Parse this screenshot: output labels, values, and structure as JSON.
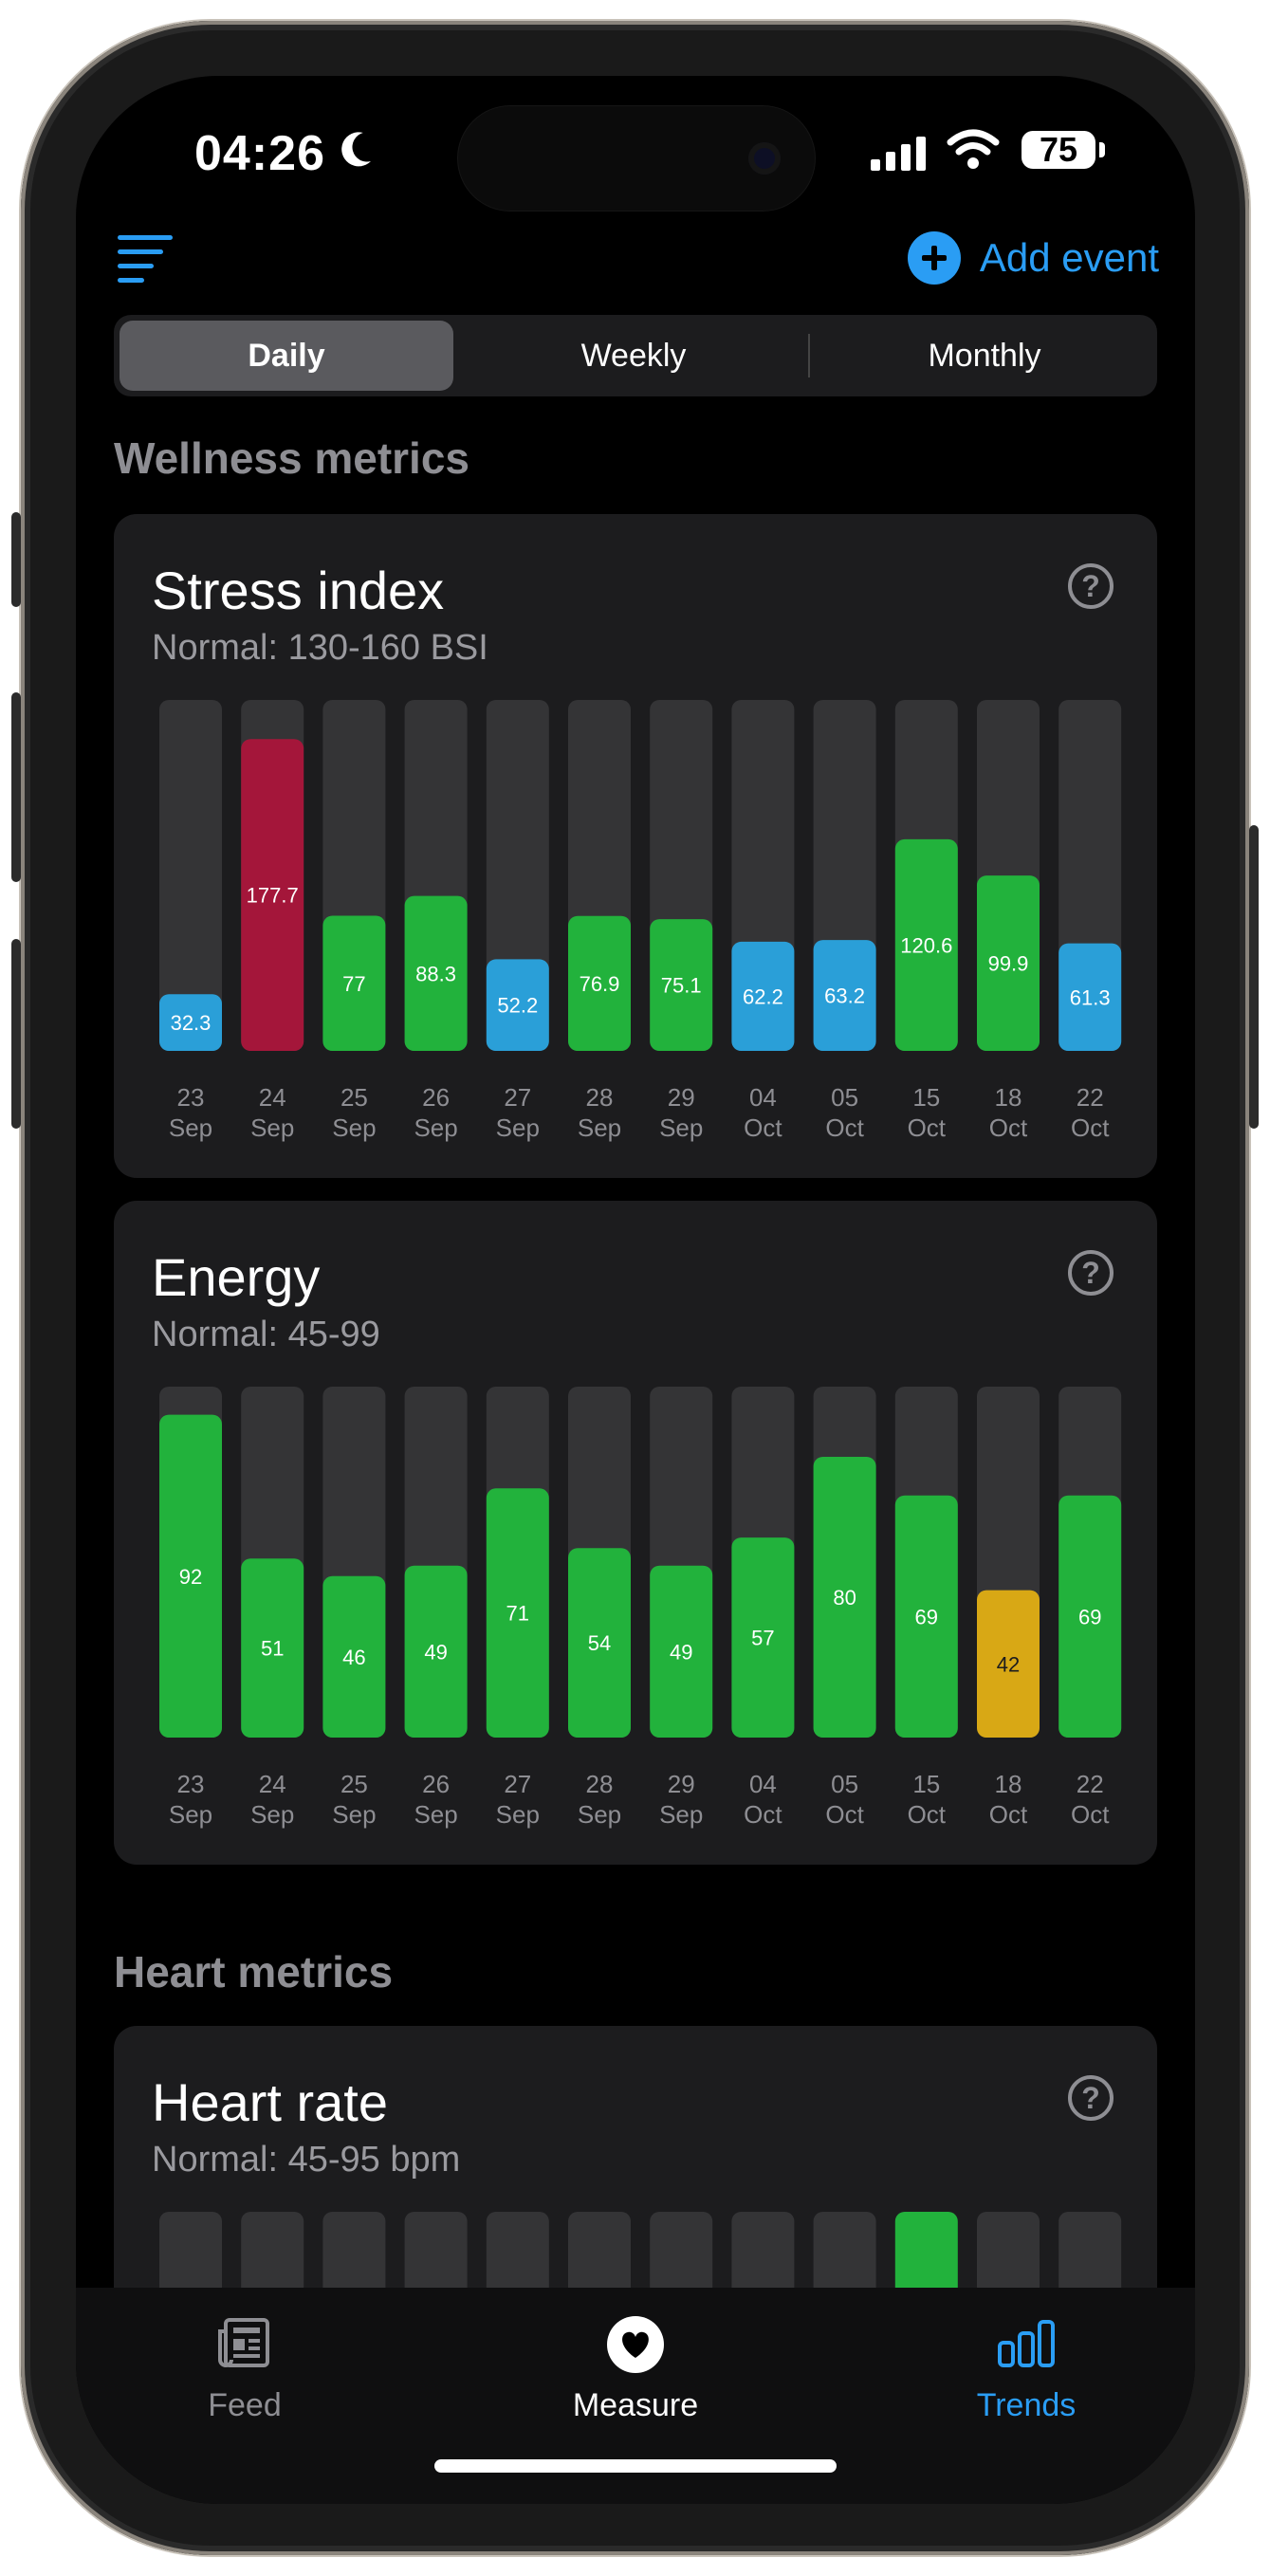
{
  "status_bar": {
    "time": "04:26",
    "battery": "75"
  },
  "header": {
    "add_event_label": "Add event"
  },
  "tabs": [
    {
      "label": "Daily",
      "selected": true
    },
    {
      "label": "Weekly",
      "selected": false
    },
    {
      "label": "Monthly",
      "selected": false
    }
  ],
  "sections": {
    "wellness": "Wellness metrics",
    "heart": "Heart metrics"
  },
  "cards": {
    "stress": {
      "title": "Stress index",
      "subtitle": "Normal: 130-160 BSI",
      "help": "?"
    },
    "energy": {
      "title": "Energy",
      "subtitle": "Normal: 45-99",
      "help": "?"
    },
    "heart_rate": {
      "title": "Heart rate",
      "subtitle": "Normal: 45-95 bpm",
      "help": "?"
    }
  },
  "chart_data": [
    {
      "type": "bar",
      "title": "Stress index",
      "ylim": [
        0,
        200
      ],
      "categories": [
        [
          "23",
          "Sep"
        ],
        [
          "24",
          "Sep"
        ],
        [
          "25",
          "Sep"
        ],
        [
          "26",
          "Sep"
        ],
        [
          "27",
          "Sep"
        ],
        [
          "28",
          "Sep"
        ],
        [
          "29",
          "Sep"
        ],
        [
          "04",
          "Oct"
        ],
        [
          "05",
          "Oct"
        ],
        [
          "15",
          "Oct"
        ],
        [
          "18",
          "Oct"
        ],
        [
          "22",
          "Oct"
        ]
      ],
      "values": [
        32.3,
        177.7,
        77,
        88.3,
        52.2,
        76.9,
        75.1,
        62.2,
        63.2,
        120.6,
        99.9,
        61.3
      ],
      "colors": [
        "#2a9fd8",
        "#a4163a",
        "#22b23c",
        "#22b23c",
        "#2a9fd8",
        "#22b23c",
        "#22b23c",
        "#2a9fd8",
        "#2a9fd8",
        "#22b23c",
        "#22b23c",
        "#2a9fd8"
      ]
    },
    {
      "type": "bar",
      "title": "Energy",
      "ylim": [
        0,
        100
      ],
      "categories": [
        [
          "23",
          "Sep"
        ],
        [
          "24",
          "Sep"
        ],
        [
          "25",
          "Sep"
        ],
        [
          "26",
          "Sep"
        ],
        [
          "27",
          "Sep"
        ],
        [
          "28",
          "Sep"
        ],
        [
          "29",
          "Sep"
        ],
        [
          "04",
          "Oct"
        ],
        [
          "05",
          "Oct"
        ],
        [
          "15",
          "Oct"
        ],
        [
          "18",
          "Oct"
        ],
        [
          "22",
          "Oct"
        ]
      ],
      "values": [
        92,
        51,
        46,
        49,
        71,
        54,
        49,
        57,
        80,
        69,
        42,
        69
      ],
      "colors": [
        "#22b23c",
        "#22b23c",
        "#22b23c",
        "#22b23c",
        "#22b23c",
        "#22b23c",
        "#22b23c",
        "#22b23c",
        "#22b23c",
        "#22b23c",
        "#d8a815",
        "#22b23c"
      ]
    }
  ],
  "heart_rate_bars": {
    "count": 12,
    "highlighted_index": 9,
    "highlight_color": "#22b23c"
  },
  "tabbar": [
    {
      "label": "Feed",
      "icon": "newspaper-icon",
      "color": "#8e8e93"
    },
    {
      "label": "Measure",
      "icon": "heart-icon",
      "color": "#ffffff"
    },
    {
      "label": "Trends",
      "icon": "bar-chart-icon",
      "color": "#2a9df4"
    }
  ]
}
